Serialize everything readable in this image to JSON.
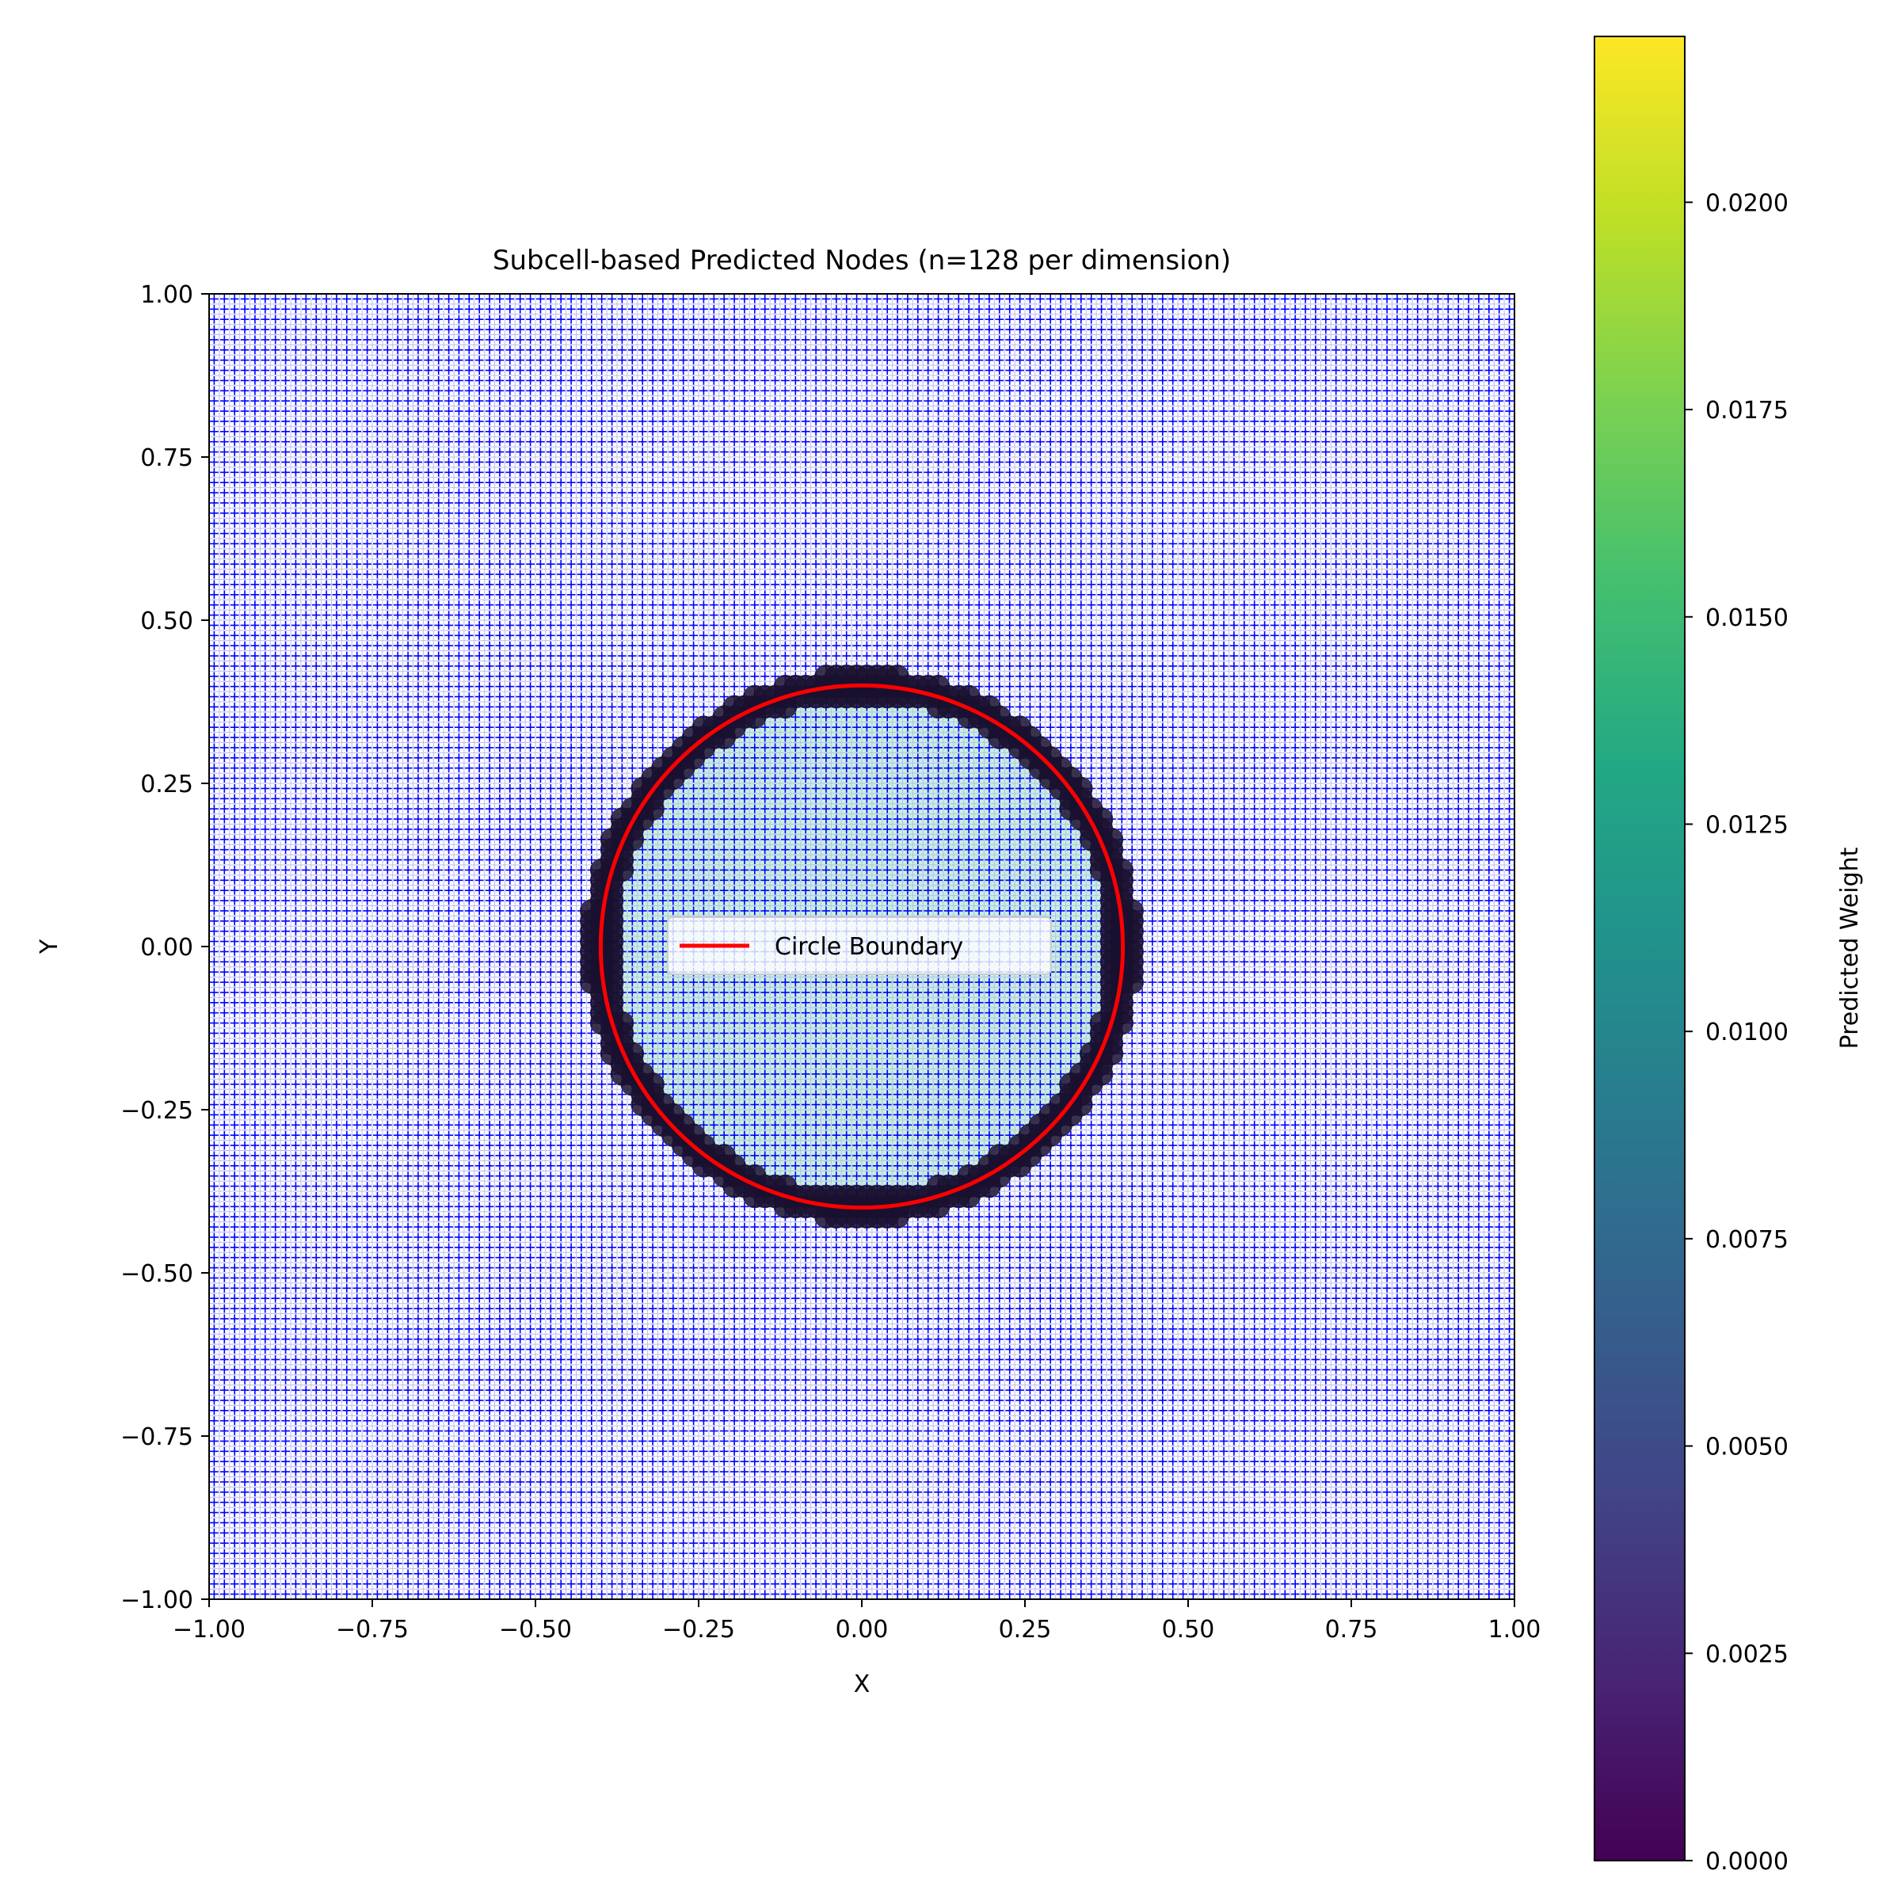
{
  "chart_data": {
    "type": "scatter",
    "title": "Subcell-based Predicted Nodes (n=128 per dimension)",
    "xlabel": "X",
    "ylabel": "Y",
    "xlim": [
      -1.0,
      1.0
    ],
    "ylim": [
      -1.0,
      1.0
    ],
    "x_ticks": [
      -1.0,
      -0.75,
      -0.5,
      -0.25,
      0.0,
      0.25,
      0.5,
      0.75,
      1.0
    ],
    "y_ticks": [
      -1.0,
      -0.75,
      -0.5,
      -0.25,
      0.0,
      0.25,
      0.5,
      0.75,
      1.0
    ],
    "x_tick_labels": [
      "−1.00",
      "−0.75",
      "−0.50",
      "−0.25",
      "0.00",
      "0.25",
      "0.50",
      "0.75",
      "1.00"
    ],
    "y_tick_labels": [
      "−1.00",
      "−0.75",
      "−0.50",
      "−0.25",
      "0.00",
      "0.25",
      "0.50",
      "0.75",
      "1.00"
    ],
    "grid": false,
    "nodes_per_dimension": 128,
    "node_color": "#0000ff",
    "circle": {
      "center": [
        0.0,
        0.0
      ],
      "radius": 0.4,
      "color": "#ff0000",
      "label": "Circle Boundary"
    },
    "weights": {
      "outside": 0.0,
      "boundary_band": 0.0003,
      "inside": 0.0001
    },
    "inside_fill_color": "#c8f0dc",
    "boundary_marker_color": "#1a1030",
    "legend": {
      "placement": "center",
      "entries": [
        "Circle Boundary"
      ]
    },
    "colorbar": {
      "label": "Predicted Weight",
      "min": 0.0,
      "max": 0.022,
      "colormap": "viridis",
      "ticks": [
        0.0,
        0.0025,
        0.005,
        0.0075,
        0.01,
        0.0125,
        0.015,
        0.0175,
        0.02
      ],
      "tick_labels": [
        "0.0000",
        "0.0025",
        "0.0050",
        "0.0075",
        "0.0100",
        "0.0125",
        "0.0150",
        "0.0175",
        "0.0200"
      ]
    }
  }
}
